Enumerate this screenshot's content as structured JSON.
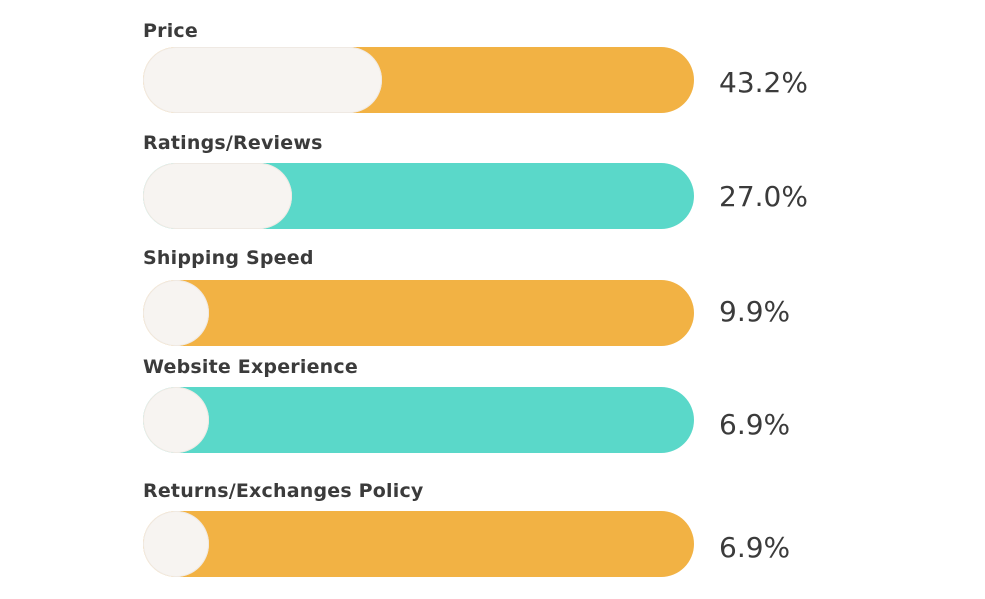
{
  "chart_data": {
    "type": "bar",
    "categories": [
      "Price",
      "Ratings/Reviews",
      "Shipping Speed",
      "Website Experience",
      "Returns/Exchanges Policy"
    ],
    "values": [
      43.2,
      27.0,
      9.9,
      6.9,
      6.9
    ],
    "value_labels": [
      "43.2%",
      "27.0%",
      "9.9%",
      "6.9%",
      "6.9%"
    ],
    "colors": [
      "#f2b244",
      "#5ad8c9",
      "#f2b244",
      "#5ad8c9",
      "#f2b244"
    ],
    "unit": "%",
    "orientation": "horizontal",
    "grid": false,
    "legend": "none"
  }
}
